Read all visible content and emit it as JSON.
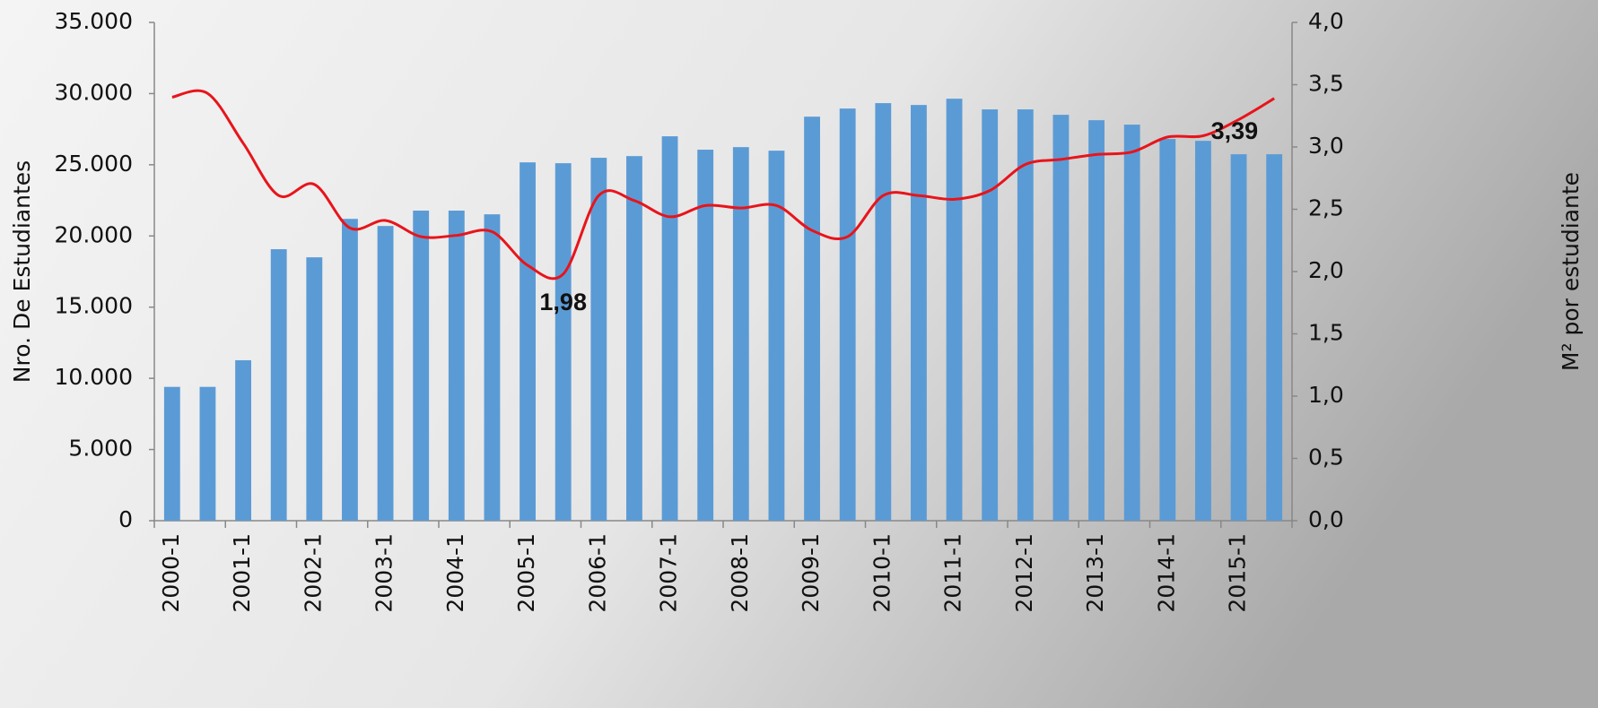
{
  "chart_data": {
    "type": "bar_line",
    "categories": [
      "2000-1",
      null,
      "2001-1",
      null,
      "2002-1",
      null,
      "2003-1",
      null,
      "2004-1",
      null,
      "2005-1",
      null,
      "2006-1",
      null,
      "2007-1",
      null,
      "2008-1",
      null,
      "2009-1",
      null,
      "2010-1",
      null,
      "2011-1",
      null,
      "2012-1",
      null,
      "2013-1",
      null,
      "2014-1",
      null,
      "2015-1",
      null
    ],
    "y_label": "Nro. De Estudiantes",
    "y2_label": "M² por estudiante",
    "ylim": [
      0,
      35000
    ],
    "yticks": [
      {
        "value": 0,
        "label": "0"
      },
      {
        "value": 5000,
        "label": "5.000"
      },
      {
        "value": 10000,
        "label": "10.000"
      },
      {
        "value": 15000,
        "label": "15.000"
      },
      {
        "value": 20000,
        "label": "20.000"
      },
      {
        "value": 25000,
        "label": "25.000"
      },
      {
        "value": 30000,
        "label": "30.000"
      },
      {
        "value": 35000,
        "label": "35.000"
      }
    ],
    "y2lim": [
      0,
      4
    ],
    "y2ticks": [
      {
        "value": 0,
        "label": "0,0"
      },
      {
        "value": 0.5,
        "label": "0,5"
      },
      {
        "value": 1,
        "label": "1,0"
      },
      {
        "value": 1.5,
        "label": "1,5"
      },
      {
        "value": 2,
        "label": "2,0"
      },
      {
        "value": 2.5,
        "label": "2,5"
      },
      {
        "value": 3,
        "label": "3,0"
      },
      {
        "value": 3.5,
        "label": "3,5"
      },
      {
        "value": 4,
        "label": "4,0"
      }
    ],
    "series": [
      {
        "type": "bar",
        "color": "#5b9bd5",
        "values": [
          9400,
          9400,
          11270,
          19070,
          18500,
          21200,
          20700,
          21780,
          21780,
          21520,
          25170,
          25110,
          25490,
          25610,
          27000,
          26060,
          26240,
          25990,
          28380,
          28950,
          29330,
          29200,
          29640,
          28890,
          28890,
          28510,
          28130,
          27820,
          26810,
          26680,
          25740,
          25740
        ]
      },
      {
        "type": "line",
        "axis": "y2",
        "color": "#e8141b",
        "values": [
          3.4,
          3.43,
          3.03,
          2.61,
          2.7,
          2.35,
          2.41,
          2.28,
          2.29,
          2.32,
          2.05,
          1.98,
          2.61,
          2.57,
          2.44,
          2.53,
          2.51,
          2.53,
          2.33,
          2.28,
          2.61,
          2.61,
          2.58,
          2.65,
          2.86,
          2.9,
          2.94,
          2.96,
          3.08,
          3.09,
          3.22,
          3.39
        ],
        "value_labels": [
          null,
          null,
          null,
          null,
          null,
          null,
          null,
          null,
          null,
          null,
          null,
          "1,98",
          null,
          null,
          null,
          null,
          null,
          null,
          null,
          null,
          null,
          null,
          null,
          null,
          null,
          null,
          null,
          null,
          null,
          null,
          null,
          "3,39"
        ]
      }
    ]
  }
}
